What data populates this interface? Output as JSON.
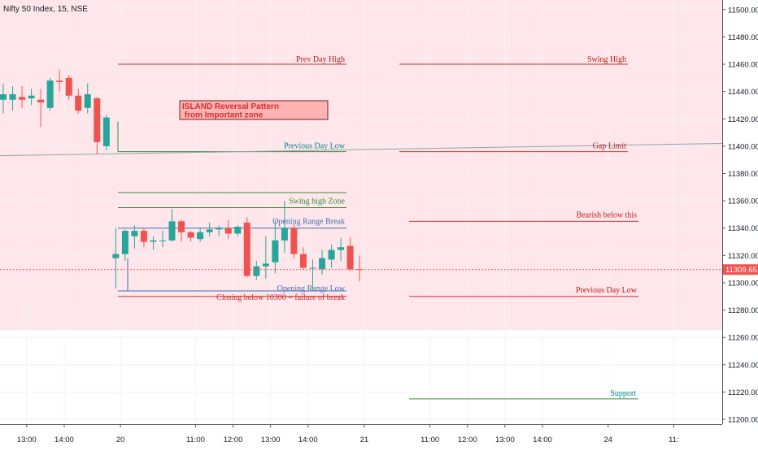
{
  "chart_data": {
    "type": "candlestick",
    "title": "Nifty 50 Index, 15, NSE",
    "price_axis": {
      "ylim": [
        11195,
        11515
      ],
      "ticks": [
        "11200.00",
        "11220.00",
        "11240.00",
        "11260.00",
        "11280.00",
        "11300.00",
        "11320.00",
        "11340.00",
        "11360.00",
        "11380.00",
        "11400.00",
        "11420.00",
        "11440.00",
        "11460.00",
        "11480.00",
        "11500.00"
      ],
      "last_price_label": "11309.65",
      "last_price": 11309.65
    },
    "time_axis": {
      "ticks": [
        {
          "label": "13:00",
          "bar": 2.5
        },
        {
          "label": "14:00",
          "bar": 6.5
        },
        {
          "label": "20",
          "bar": 12.5
        },
        {
          "label": "11:00",
          "bar": 20.5
        },
        {
          "label": "12:00",
          "bar": 24.5
        },
        {
          "label": "13:00",
          "bar": 28.5
        },
        {
          "label": "14:00",
          "bar": 32.5
        },
        {
          "label": "21",
          "bar": 38.5
        },
        {
          "label": "11:00",
          "bar": 45.5
        },
        {
          "label": "12:00",
          "bar": 49.5
        },
        {
          "label": "13:00",
          "bar": 53.5
        },
        {
          "label": "14:00",
          "bar": 57.5
        },
        {
          "label": "24",
          "bar": 64.5
        },
        {
          "label": "11:",
          "bar": 71.5
        }
      ]
    },
    "candles": [
      {
        "o": 11434,
        "h": 11446,
        "l": 11424,
        "c": 11438
      },
      {
        "o": 11434,
        "h": 11444,
        "l": 11426,
        "c": 11438
      },
      {
        "o": 11436,
        "h": 11444,
        "l": 11428,
        "c": 11434
      },
      {
        "o": 11435,
        "h": 11442,
        "l": 11430,
        "c": 11437
      },
      {
        "o": 11434,
        "h": 11442,
        "l": 11414,
        "c": 11432
      },
      {
        "o": 11428,
        "h": 11450,
        "l": 11426,
        "c": 11448
      },
      {
        "o": 11448,
        "h": 11456,
        "l": 11440,
        "c": 11447
      },
      {
        "o": 11450,
        "h": 11452,
        "l": 11434,
        "c": 11437
      },
      {
        "o": 11437,
        "h": 11442,
        "l": 11424,
        "c": 11426
      },
      {
        "o": 11428,
        "h": 11446,
        "l": 11424,
        "c": 11438
      },
      {
        "o": 11435,
        "h": 11436,
        "l": 11394,
        "c": 11403
      },
      {
        "o": 11400,
        "h": 11423,
        "l": 11397,
        "c": 11421
      },
      {
        "o": 11318,
        "h": 11340,
        "l": 11296,
        "c": 11321
      },
      {
        "o": 11321,
        "h": 11339,
        "l": 11316,
        "c": 11338
      },
      {
        "o": 11334,
        "h": 11342,
        "l": 11325,
        "c": 11338
      },
      {
        "o": 11338,
        "h": 11340,
        "l": 11326,
        "c": 11330
      },
      {
        "o": 11330,
        "h": 11334,
        "l": 11324,
        "c": 11331
      },
      {
        "o": 11331,
        "h": 11338,
        "l": 11326,
        "c": 11331
      },
      {
        "o": 11331,
        "h": 11354,
        "l": 11330,
        "c": 11345
      },
      {
        "o": 11345,
        "h": 11346,
        "l": 11330,
        "c": 11337
      },
      {
        "o": 11337,
        "h": 11338,
        "l": 11330,
        "c": 11333
      },
      {
        "o": 11332,
        "h": 11340,
        "l": 11330,
        "c": 11337
      },
      {
        "o": 11337,
        "h": 11344,
        "l": 11334,
        "c": 11339
      },
      {
        "o": 11339,
        "h": 11342,
        "l": 11334,
        "c": 11340
      },
      {
        "o": 11340,
        "h": 11346,
        "l": 11332,
        "c": 11336
      },
      {
        "o": 11336,
        "h": 11342,
        "l": 11334,
        "c": 11341
      },
      {
        "o": 11344,
        "h": 11348,
        "l": 11304,
        "c": 11305
      },
      {
        "o": 11305,
        "h": 11316,
        "l": 11302,
        "c": 11312
      },
      {
        "o": 11312,
        "h": 11334,
        "l": 11303,
        "c": 11314
      },
      {
        "o": 11315,
        "h": 11346,
        "l": 11307,
        "c": 11331
      },
      {
        "o": 11331,
        "h": 11360,
        "l": 11322,
        "c": 11340
      },
      {
        "o": 11340,
        "h": 11343,
        "l": 11318,
        "c": 11321
      },
      {
        "o": 11321,
        "h": 11326,
        "l": 11310,
        "c": 11311
      },
      {
        "o": 11311,
        "h": 11317,
        "l": 11295,
        "c": 11311
      },
      {
        "o": 11310,
        "h": 11324,
        "l": 11306,
        "c": 11318
      },
      {
        "o": 11317,
        "h": 11328,
        "l": 11311,
        "c": 11324
      },
      {
        "o": 11324,
        "h": 11333,
        "l": 11316,
        "c": 11326
      },
      {
        "o": 11327,
        "h": 11333,
        "l": 11309,
        "c": 11310
      },
      {
        "o": 11310,
        "h": 11320,
        "l": 11301,
        "c": 11309.65
      }
    ],
    "colors": {
      "up": "#26a69a",
      "down": "#ef5350",
      "background_band": "#ffe6ea",
      "price_label_bg": "#ef5350"
    },
    "annotations": {
      "prev_day_high": {
        "text": "Prev Day High",
        "price": 11460
      },
      "swing_high": {
        "text": "Swing High",
        "price": 11460
      },
      "previous_day_low": {
        "text": "Previous Day Low",
        "price": 11396
      },
      "gap_limit": {
        "text": "Gap Limit",
        "price": 11396
      },
      "swing_high_zone": {
        "text": "Swing high Zone",
        "upper": 11366,
        "lower": 11355
      },
      "opening_range_break": {
        "text": "Opening Range Break",
        "price": 11340
      },
      "bearish_below_this": {
        "text": "Bearish below this",
        "price": 11345
      },
      "opening_range_low": {
        "text": "Opening Range Low",
        "price": 11294
      },
      "closing_below": {
        "text": "Closing below 10300 = failure of break",
        "price": 11290
      },
      "previous_day_low_right": {
        "text": "Previous Day Low",
        "price": 11290
      },
      "support": {
        "text": "Support",
        "price": 11215
      },
      "island_box": {
        "line1": "ISLAND Reversal Pattern",
        "line2": " from Important zone"
      },
      "trendline": {
        "from_price": 11393,
        "to_price": 11402
      }
    }
  }
}
